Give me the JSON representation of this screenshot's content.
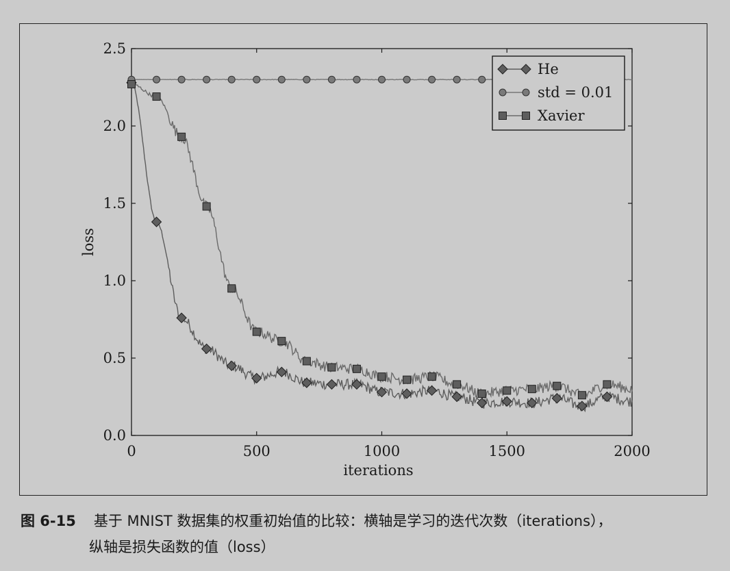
{
  "chart_data": {
    "type": "line",
    "xlabel": "iterations",
    "ylabel": "loss",
    "xlim": [
      0,
      2000
    ],
    "ylim": [
      0,
      2.5
    ],
    "x_ticks": [
      "0",
      "500",
      "1000",
      "1500",
      "2000"
    ],
    "y_ticks": [
      "0.0",
      "0.5",
      "1.0",
      "1.5",
      "2.0",
      "2.5"
    ],
    "grid": false,
    "legend_position": "top-right",
    "series": [
      {
        "name": "He",
        "marker": "diamond",
        "x": [
          0,
          100,
          200,
          300,
          400,
          500,
          600,
          700,
          800,
          900,
          1000,
          1100,
          1200,
          1300,
          1400,
          1500,
          1600,
          1700,
          1800,
          1900
        ],
        "y": [
          2.28,
          1.38,
          0.76,
          0.56,
          0.45,
          0.37,
          0.41,
          0.34,
          0.33,
          0.33,
          0.28,
          0.27,
          0.29,
          0.25,
          0.21,
          0.22,
          0.21,
          0.24,
          0.19,
          0.25
        ]
      },
      {
        "name": "std = 0.01",
        "marker": "circle",
        "x": [
          0,
          100,
          200,
          300,
          400,
          500,
          600,
          700,
          800,
          900,
          1000,
          1100,
          1200,
          1300,
          1400,
          1500,
          1600,
          1700,
          1800,
          1900
        ],
        "y": [
          2.3,
          2.3,
          2.3,
          2.3,
          2.3,
          2.3,
          2.3,
          2.3,
          2.3,
          2.3,
          2.3,
          2.3,
          2.3,
          2.3,
          2.3,
          2.3,
          2.3,
          2.3,
          2.3,
          2.3
        ]
      },
      {
        "name": "Xavier",
        "marker": "square",
        "x": [
          0,
          100,
          200,
          300,
          400,
          500,
          600,
          700,
          800,
          900,
          1000,
          1100,
          1200,
          1300,
          1400,
          1500,
          1600,
          1700,
          1800,
          1900
        ],
        "y": [
          2.27,
          2.19,
          1.93,
          1.48,
          0.95,
          0.67,
          0.61,
          0.48,
          0.44,
          0.43,
          0.38,
          0.36,
          0.38,
          0.33,
          0.27,
          0.29,
          0.3,
          0.32,
          0.26,
          0.33
        ]
      }
    ]
  },
  "caption": {
    "label": "图 6-15",
    "line1": "基于 MNIST 数据集的权重初始值的比较：横轴是学习的迭代次数（iterations），",
    "line2": "纵轴是损失函数的值（loss）"
  }
}
